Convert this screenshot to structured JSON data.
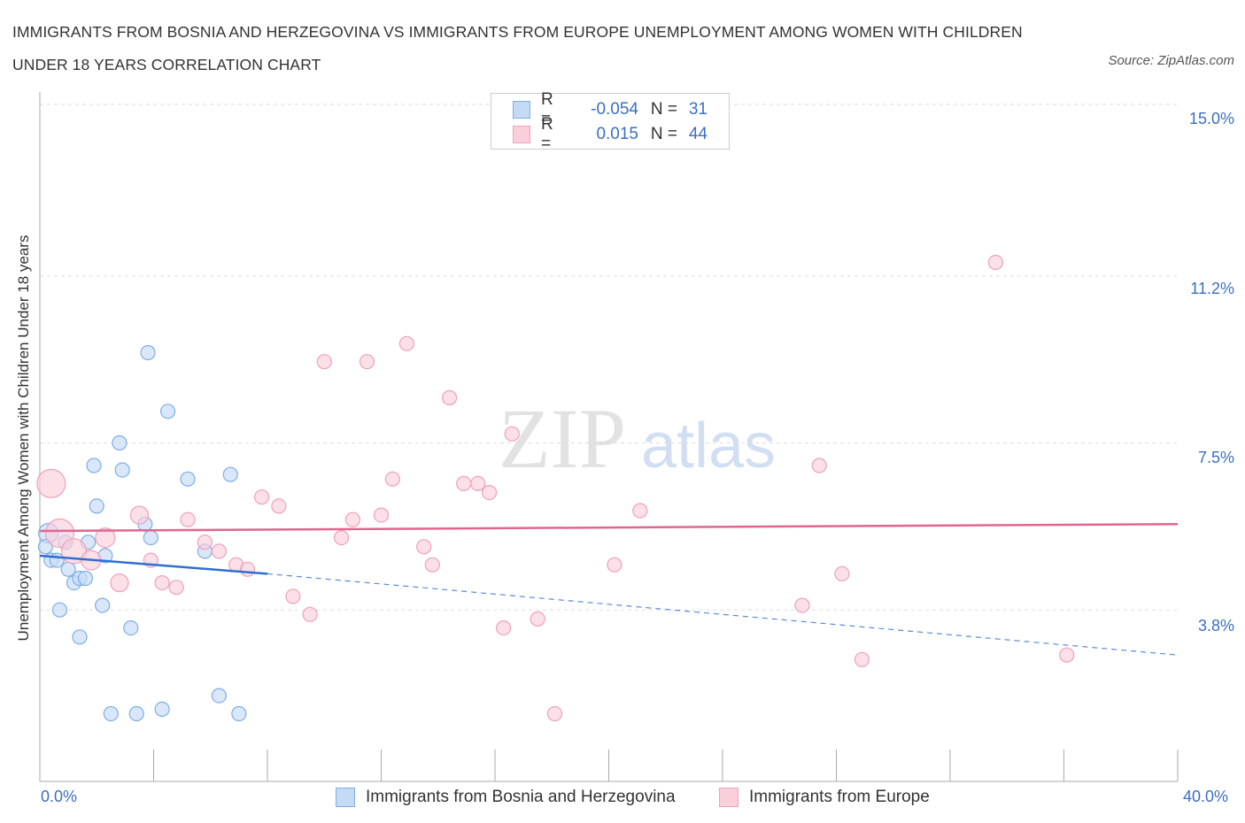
{
  "chart_data": {
    "type": "scatter",
    "title": "IMMIGRANTS FROM BOSNIA AND HERZEGOVINA VS IMMIGRANTS FROM EUROPE UNEMPLOYMENT AMONG WOMEN WITH CHILDREN UNDER 18 YEARS CORRELATION CHART",
    "source": "Source: ZipAtlas.com",
    "ylabel": "Unemployment Among Women with Children Under 18 years",
    "xlim": [
      0,
      40
    ],
    "ylim": [
      0,
      15
    ],
    "x_tick_labels": [
      "0.0%",
      "40.0%"
    ],
    "y_ticks": [
      {
        "value": 3.8,
        "label": "3.8%"
      },
      {
        "value": 7.5,
        "label": "7.5%"
      },
      {
        "value": 11.2,
        "label": "11.2%"
      },
      {
        "value": 15.0,
        "label": "15.0%"
      }
    ],
    "grid": "horizontal dashed",
    "legend_placement": "top-center and bottom",
    "watermark": "ZIPatlas",
    "series": [
      {
        "name": "Immigrants from Bosnia and Herzegovina",
        "color": "#7eaee8",
        "fill": "#c5daf5",
        "line_color": "#2f6fd0",
        "R": "-0.054",
        "N": "31",
        "trend": {
          "x": [
            0,
            8.0
          ],
          "y": [
            5.0,
            4.6
          ],
          "extended_x": [
            8.0,
            40
          ],
          "extended_y": [
            4.6,
            2.8
          ]
        },
        "points": [
          {
            "x": 0.3,
            "y": 5.5,
            "r": 11
          },
          {
            "x": 0.4,
            "y": 4.9,
            "r": 8
          },
          {
            "x": 0.6,
            "y": 4.9,
            "r": 8
          },
          {
            "x": 0.7,
            "y": 3.8,
            "r": 8
          },
          {
            "x": 0.9,
            "y": 5.3,
            "r": 8
          },
          {
            "x": 1.0,
            "y": 4.7,
            "r": 8
          },
          {
            "x": 1.2,
            "y": 4.4,
            "r": 8
          },
          {
            "x": 1.4,
            "y": 4.5,
            "r": 8
          },
          {
            "x": 1.4,
            "y": 3.2,
            "r": 8
          },
          {
            "x": 1.6,
            "y": 4.5,
            "r": 8
          },
          {
            "x": 1.7,
            "y": 5.3,
            "r": 8
          },
          {
            "x": 1.9,
            "y": 7.0,
            "r": 8
          },
          {
            "x": 2.0,
            "y": 6.1,
            "r": 8
          },
          {
            "x": 2.2,
            "y": 3.9,
            "r": 8
          },
          {
            "x": 2.3,
            "y": 5.0,
            "r": 8
          },
          {
            "x": 2.5,
            "y": 1.5,
            "r": 8
          },
          {
            "x": 2.8,
            "y": 7.5,
            "r": 8
          },
          {
            "x": 2.9,
            "y": 6.9,
            "r": 8
          },
          {
            "x": 3.2,
            "y": 3.4,
            "r": 8
          },
          {
            "x": 3.4,
            "y": 1.5,
            "r": 8
          },
          {
            "x": 3.7,
            "y": 5.7,
            "r": 8
          },
          {
            "x": 3.8,
            "y": 9.5,
            "r": 8
          },
          {
            "x": 3.9,
            "y": 5.4,
            "r": 8
          },
          {
            "x": 4.3,
            "y": 1.6,
            "r": 8
          },
          {
            "x": 4.5,
            "y": 8.2,
            "r": 8
          },
          {
            "x": 5.2,
            "y": 6.7,
            "r": 8
          },
          {
            "x": 5.8,
            "y": 5.1,
            "r": 8
          },
          {
            "x": 6.3,
            "y": 1.9,
            "r": 8
          },
          {
            "x": 6.7,
            "y": 6.8,
            "r": 8
          },
          {
            "x": 7.0,
            "y": 1.5,
            "r": 8
          },
          {
            "x": 0.2,
            "y": 5.2,
            "r": 8
          }
        ]
      },
      {
        "name": "Immigrants from Europe",
        "color": "#f0a0bb",
        "fill": "#f9cfdc",
        "line_color": "#e06690",
        "R": "0.015",
        "N": "44",
        "trend": {
          "x": [
            0,
            40
          ],
          "y": [
            5.55,
            5.7
          ]
        },
        "points": [
          {
            "x": 0.4,
            "y": 6.6,
            "r": 16
          },
          {
            "x": 0.7,
            "y": 5.5,
            "r": 16
          },
          {
            "x": 1.2,
            "y": 5.1,
            "r": 14
          },
          {
            "x": 1.8,
            "y": 4.9,
            "r": 11
          },
          {
            "x": 2.3,
            "y": 5.4,
            "r": 11
          },
          {
            "x": 2.8,
            "y": 4.4,
            "r": 10
          },
          {
            "x": 3.5,
            "y": 5.9,
            "r": 10
          },
          {
            "x": 3.9,
            "y": 4.9,
            "r": 8
          },
          {
            "x": 4.3,
            "y": 4.4,
            "r": 8
          },
          {
            "x": 4.8,
            "y": 4.3,
            "r": 8
          },
          {
            "x": 5.2,
            "y": 5.8,
            "r": 8
          },
          {
            "x": 5.8,
            "y": 5.3,
            "r": 8
          },
          {
            "x": 6.3,
            "y": 5.1,
            "r": 8
          },
          {
            "x": 6.9,
            "y": 4.8,
            "r": 8
          },
          {
            "x": 7.3,
            "y": 4.7,
            "r": 8
          },
          {
            "x": 7.8,
            "y": 6.3,
            "r": 8
          },
          {
            "x": 8.4,
            "y": 6.1,
            "r": 8
          },
          {
            "x": 8.9,
            "y": 4.1,
            "r": 8
          },
          {
            "x": 9.5,
            "y": 3.7,
            "r": 8
          },
          {
            "x": 10.0,
            "y": 9.3,
            "r": 8
          },
          {
            "x": 10.6,
            "y": 5.4,
            "r": 8
          },
          {
            "x": 11.0,
            "y": 5.8,
            "r": 8
          },
          {
            "x": 11.5,
            "y": 9.3,
            "r": 8
          },
          {
            "x": 12.0,
            "y": 5.9,
            "r": 8
          },
          {
            "x": 12.4,
            "y": 6.7,
            "r": 8
          },
          {
            "x": 12.9,
            "y": 9.7,
            "r": 8
          },
          {
            "x": 13.5,
            "y": 5.2,
            "r": 8
          },
          {
            "x": 13.8,
            "y": 4.8,
            "r": 8
          },
          {
            "x": 14.4,
            "y": 8.5,
            "r": 8
          },
          {
            "x": 14.9,
            "y": 6.6,
            "r": 8
          },
          {
            "x": 15.4,
            "y": 6.6,
            "r": 8
          },
          {
            "x": 15.8,
            "y": 6.4,
            "r": 8
          },
          {
            "x": 16.3,
            "y": 3.4,
            "r": 8
          },
          {
            "x": 16.6,
            "y": 7.7,
            "r": 8
          },
          {
            "x": 17.5,
            "y": 3.6,
            "r": 8
          },
          {
            "x": 18.1,
            "y": 1.5,
            "r": 8
          },
          {
            "x": 20.2,
            "y": 4.8,
            "r": 8
          },
          {
            "x": 21.1,
            "y": 6.0,
            "r": 8
          },
          {
            "x": 26.8,
            "y": 3.9,
            "r": 8
          },
          {
            "x": 27.4,
            "y": 7.0,
            "r": 8
          },
          {
            "x": 28.2,
            "y": 4.6,
            "r": 8
          },
          {
            "x": 28.9,
            "y": 2.7,
            "r": 8
          },
          {
            "x": 33.6,
            "y": 11.5,
            "r": 8
          },
          {
            "x": 36.1,
            "y": 2.8,
            "r": 8
          }
        ]
      }
    ]
  }
}
